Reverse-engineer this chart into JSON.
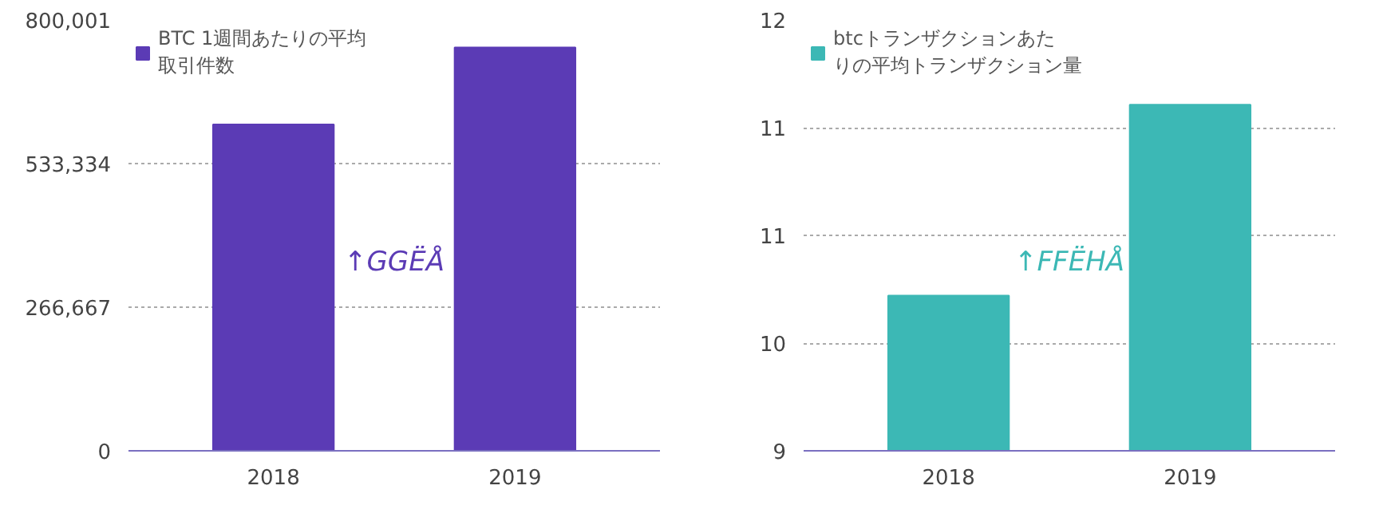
{
  "chart_data": [
    {
      "type": "bar",
      "categories": [
        "2018",
        "2019"
      ],
      "series": [
        {
          "name": "BTC 1週間あたりの平均取引件数",
          "color": "#5b3bb5",
          "values": [
            606000,
            749000
          ]
        }
      ],
      "ylim": [
        0,
        800001
      ],
      "yticks": [
        0,
        {
          "value": 266667,
          "label": "266,667"
        },
        {
          "value": 533334,
          "label": "533,334"
        },
        {
          "value": 800001,
          "label": "800,001"
        }
      ],
      "grid": "y",
      "legend": "top left",
      "annotations": [
        "↑GGËÅ"
      ]
    },
    {
      "type": "bar",
      "categories": [
        "2018",
        "2019"
      ],
      "series": [
        {
          "name": "btcトランザクションあたりの平均トランザクション量",
          "color": "#3cb8b5",
          "values": [
            10.08,
            11.41
          ]
        }
      ],
      "ylim": [
        9,
        12
      ],
      "yticks": [
        9,
        {
          "value": 9.75,
          "label": "10"
        },
        {
          "value": 10.5,
          "label": "11"
        },
        {
          "value": 11.25,
          "label": "11"
        },
        12
      ],
      "grid": "y",
      "legend": "top left",
      "annotations": [
        "↑FFËHÅ"
      ]
    }
  ]
}
